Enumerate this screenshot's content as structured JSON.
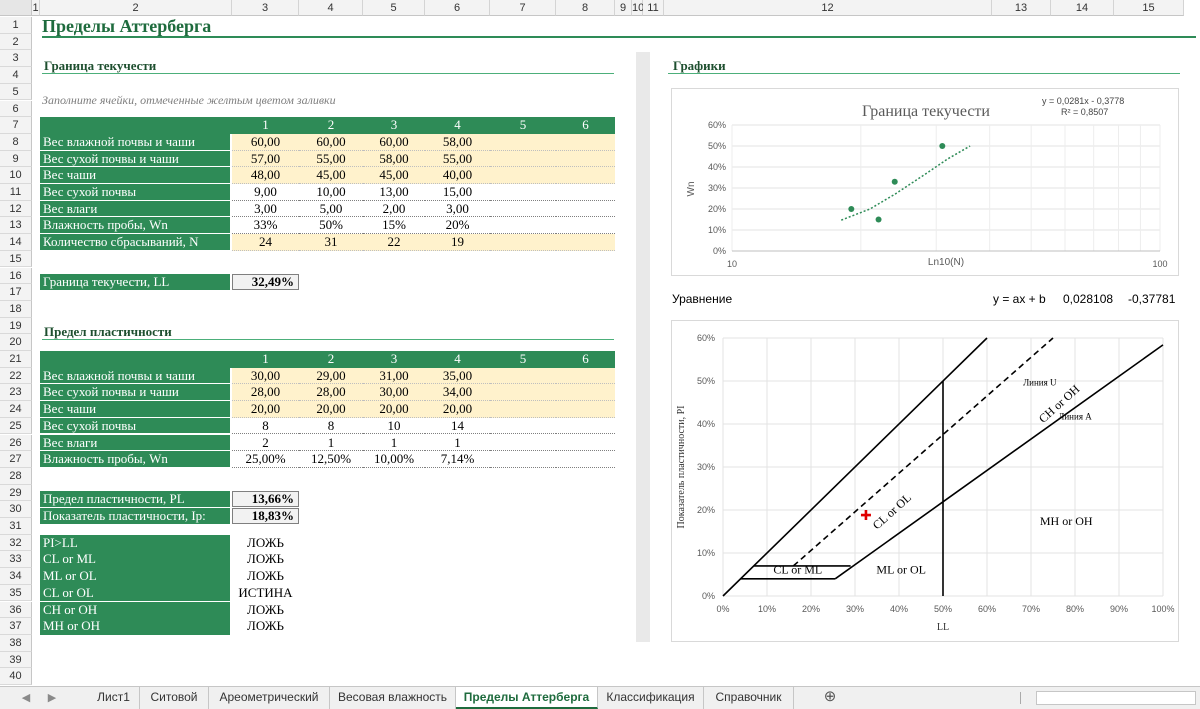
{
  "columns": [
    "1",
    "2",
    "3",
    "4",
    "5",
    "6",
    "7",
    "8",
    "9",
    "10",
    "11",
    "12",
    "13",
    "14",
    "15"
  ],
  "rows": [
    "1",
    "2",
    "3",
    "4",
    "5",
    "6",
    "7",
    "8",
    "9",
    "10",
    "11",
    "12",
    "13",
    "14",
    "15",
    "16",
    "17",
    "18",
    "19",
    "20",
    "21",
    "22",
    "23",
    "24",
    "25",
    "26",
    "27",
    "28",
    "29",
    "30",
    "31",
    "32",
    "33",
    "34",
    "35",
    "36",
    "37",
    "38",
    "39",
    "40"
  ],
  "title": "Пределы Аттерберга",
  "liquid": {
    "heading": "Граница текучести",
    "hint": "Заполните ячейки, отмеченные желтым цветом заливки",
    "col_headers": [
      "1",
      "2",
      "3",
      "4",
      "5",
      "6"
    ],
    "rows": [
      {
        "label": "Вес влажной почвы и чаши",
        "values": [
          "60,00",
          "60,00",
          "60,00",
          "58,00",
          "",
          ""
        ]
      },
      {
        "label": "Вес сухой почвы и чаши",
        "values": [
          "57,00",
          "55,00",
          "58,00",
          "55,00",
          "",
          ""
        ]
      },
      {
        "label": "Вес чаши",
        "values": [
          "48,00",
          "45,00",
          "45,00",
          "40,00",
          "",
          ""
        ]
      },
      {
        "label": "Вес сухой почвы",
        "values": [
          "9,00",
          "10,00",
          "13,00",
          "15,00",
          "",
          ""
        ]
      },
      {
        "label": "Вес влаги",
        "values": [
          "3,00",
          "5,00",
          "2,00",
          "3,00",
          "",
          ""
        ]
      },
      {
        "label": "Влажность пробы, Wn",
        "values": [
          "33%",
          "50%",
          "15%",
          "20%",
          "",
          ""
        ]
      },
      {
        "label": "Количество сбрасываний, N",
        "values": [
          "24",
          "31",
          "22",
          "19",
          "",
          ""
        ]
      }
    ],
    "result_label": "Граница текучести, LL",
    "result_value": "32,49%"
  },
  "plastic": {
    "heading": "Предел пластичности",
    "col_headers": [
      "1",
      "2",
      "3",
      "4",
      "5",
      "6"
    ],
    "rows": [
      {
        "label": "Вес влажной почвы и чаши",
        "values": [
          "30,00",
          "29,00",
          "31,00",
          "35,00",
          "",
          ""
        ]
      },
      {
        "label": "Вес сухой почвы и чаши",
        "values": [
          "28,00",
          "28,00",
          "30,00",
          "34,00",
          "",
          ""
        ]
      },
      {
        "label": "Вес чаши",
        "values": [
          "20,00",
          "20,00",
          "20,00",
          "20,00",
          "",
          ""
        ]
      },
      {
        "label": "Вес сухой почвы",
        "values": [
          "8",
          "8",
          "10",
          "14",
          "",
          ""
        ]
      },
      {
        "label": "Вес влаги",
        "values": [
          "2",
          "1",
          "1",
          "1",
          "",
          ""
        ]
      },
      {
        "label": "Влажность пробы, Wn",
        "values": [
          "25,00%",
          "12,50%",
          "10,00%",
          "7,14%",
          "",
          ""
        ]
      }
    ],
    "pl_label": "Предел пластичности, PL",
    "pl_value": "13,66%",
    "ip_label": "Показатель пластичности, Ip:",
    "ip_value": "18,83%"
  },
  "checks": [
    {
      "label": "PI>LL",
      "value": "ЛОЖЬ"
    },
    {
      "label": "CL or ML",
      "value": "ЛОЖЬ"
    },
    {
      "label": "ML or OL",
      "value": "ЛОЖЬ"
    },
    {
      "label": "CL or OL",
      "value": "ИСТИНА"
    },
    {
      "label": "CH or OH",
      "value": "ЛОЖЬ"
    },
    {
      "label": "MH or OH",
      "value": "ЛОЖЬ"
    }
  ],
  "graphs_heading": "Графики",
  "equation": {
    "label": "Уравнение",
    "formula": "y = ax + b",
    "a": "0,028108",
    "b": "-0,37781"
  },
  "chart_data": [
    {
      "type": "scatter",
      "title": "Граница текучести",
      "xlabel": "Ln10(N)",
      "ylabel": "Wn",
      "xscale": "log",
      "xlim": [
        10,
        100
      ],
      "ylim": [
        0,
        0.6
      ],
      "xticks": [
        "10",
        "100"
      ],
      "yticks": [
        "0%",
        "10%",
        "20%",
        "30%",
        "40%",
        "50%",
        "60%"
      ],
      "points": [
        {
          "x": 24,
          "y": 0.33
        },
        {
          "x": 31,
          "y": 0.5
        },
        {
          "x": 22,
          "y": 0.15
        },
        {
          "x": 19,
          "y": 0.2
        }
      ],
      "trendline": {
        "equation": "y = 0,0281x - 0,3778",
        "r2": "R² = 0,8507",
        "style": "dotted"
      },
      "colors": {
        "points": "#2e8b57",
        "trend": "#2e8b57"
      },
      "grid": true
    },
    {
      "type": "line",
      "title": "",
      "xlabel": "LL",
      "ylabel": "Показатель пластичности, PI",
      "xlim": [
        0,
        1
      ],
      "ylim": [
        0,
        0.6
      ],
      "xticks": [
        "0%",
        "10%",
        "20%",
        "30%",
        "40%",
        "50%",
        "60%",
        "70%",
        "80%",
        "90%",
        "100%"
      ],
      "yticks": [
        "0%",
        "10%",
        "20%",
        "30%",
        "40%",
        "50%",
        "60%"
      ],
      "grid": true,
      "series": [
        {
          "name": "Линия A",
          "style": "solid",
          "points": [
            [
              0.255,
              0.04
            ],
            [
              0.5,
              0.219
            ],
            [
              1.0,
              0.584
            ]
          ]
        },
        {
          "name": "Линия U",
          "style": "dashed",
          "points": [
            [
              0.16,
              0.07
            ],
            [
              0.75,
              0.6
            ]
          ]
        },
        {
          "style": "solid",
          "points": [
            [
              0.0,
              0.0
            ],
            [
              0.6,
              0.6
            ]
          ]
        },
        {
          "style": "solid",
          "points": [
            [
              0.5,
              0.0
            ],
            [
              0.5,
              0.5
            ]
          ]
        },
        {
          "style": "solid",
          "points": [
            [
              0.04,
              0.04
            ],
            [
              0.255,
              0.04
            ]
          ]
        },
        {
          "style": "solid",
          "points": [
            [
              0.07,
              0.07
            ],
            [
              0.29,
              0.07
            ]
          ]
        }
      ],
      "point": {
        "x": 0.3249,
        "y": 0.1883,
        "color": "#e00000"
      },
      "zone_labels": [
        {
          "text": "CL or OL",
          "x": 0.39,
          "y": 0.19,
          "rotate": -42
        },
        {
          "text": "CH or OH",
          "x": 0.77,
          "y": 0.44,
          "rotate": -42
        },
        {
          "text": "Линия U",
          "x": 0.72,
          "y": 0.49,
          "rotate": 0,
          "small": true
        },
        {
          "text": "Линия A",
          "x": 0.8,
          "y": 0.41,
          "rotate": 0,
          "small": true
        },
        {
          "text": "MH or OH",
          "x": 0.78,
          "y": 0.165,
          "rotate": 0
        },
        {
          "text": "CL or ML",
          "x": 0.17,
          "y": 0.052,
          "rotate": 0
        },
        {
          "text": "ML or OL",
          "x": 0.405,
          "y": 0.052,
          "rotate": 0
        }
      ]
    }
  ],
  "tabs": {
    "items": [
      "Лист1",
      "Ситовой",
      "Ареометрический",
      "Весовая влажность",
      "Пределы Аттерберга",
      "Классификация",
      "Справочник"
    ],
    "active": 4
  }
}
